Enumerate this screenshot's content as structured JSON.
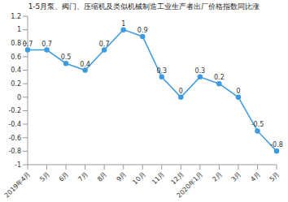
{
  "chart_data": {
    "type": "line",
    "title": "1-5月泵、阀门、压缩机及类似机械制造工业生产者出厂价格指数同比涨",
    "categories": [
      "2019年4月",
      "5月",
      "6月",
      "7月",
      "8月",
      "9月",
      "10月",
      "11月",
      "12月",
      "2020年1月",
      "2月",
      "3月",
      "4月",
      "5月"
    ],
    "values": [
      0.7,
      0.7,
      0.5,
      0.4,
      0.7,
      1,
      0.9,
      0.3,
      0,
      0.3,
      0.2,
      0,
      -0.5,
      -0.8
    ],
    "color": "#3d9be0",
    "marker": "circle",
    "ylim": [
      -1,
      1.2
    ],
    "yticks": [
      -1,
      -0.8,
      -0.6,
      -0.4,
      -0.2,
      0,
      0.2,
      0.4,
      0.6,
      0.8,
      1,
      1.2
    ],
    "grid": false,
    "data_labels": true
  }
}
